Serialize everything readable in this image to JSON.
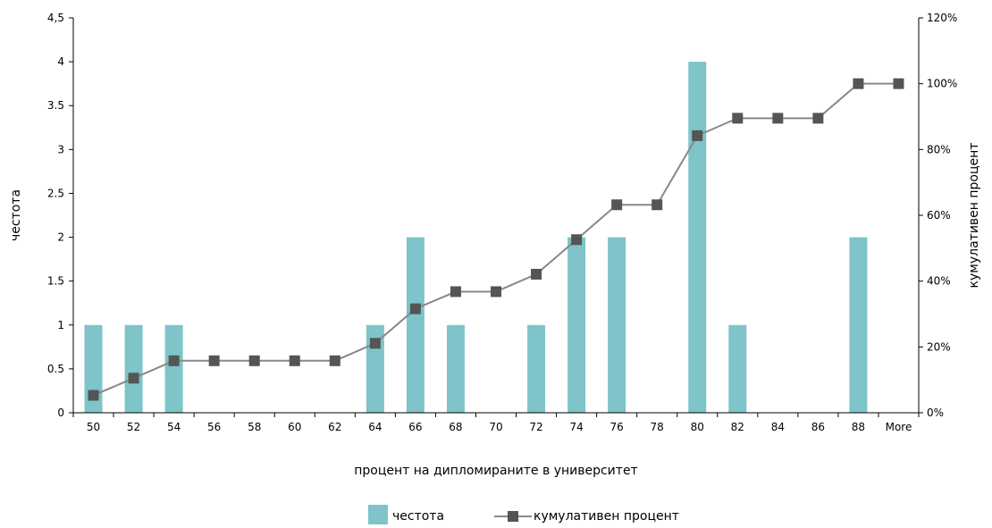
{
  "chart_data": {
    "type": "bar",
    "categories": [
      "50",
      "52",
      "54",
      "56",
      "58",
      "60",
      "62",
      "64",
      "66",
      "68",
      "70",
      "72",
      "74",
      "76",
      "78",
      "80",
      "82",
      "84",
      "86",
      "88",
      "More"
    ],
    "series": [
      {
        "name": "честота",
        "type": "bar",
        "axis": "left",
        "color": "#7ec4c9",
        "values": [
          1,
          1,
          1,
          0,
          0,
          0,
          0,
          1,
          2,
          1,
          0,
          1,
          2,
          2,
          0,
          4,
          1,
          0,
          0,
          2,
          0
        ]
      },
      {
        "name": "кумулативен процент",
        "type": "line",
        "axis": "right",
        "color": "#555555",
        "values": [
          5.3,
          10.5,
          15.8,
          15.8,
          15.8,
          15.8,
          15.8,
          21.1,
          31.6,
          36.8,
          36.8,
          42.1,
          52.6,
          63.2,
          63.2,
          84.2,
          89.5,
          89.5,
          89.5,
          100,
          100
        ]
      }
    ],
    "xlabel": "процент на дипломираните в университет",
    "ylabel": "честота",
    "y2label": "кумулативен процент",
    "ylim": [
      0,
      4.5
    ],
    "y_ticks": [
      "0",
      "0.5",
      "1",
      "1.5",
      "2",
      "2.5",
      "3",
      "3.5",
      "4",
      "4,5"
    ],
    "y2lim": [
      0,
      120
    ],
    "y2_ticks": [
      "0%",
      "20%",
      "40%",
      "60%",
      "80%",
      "100%",
      "120%"
    ],
    "grid": false,
    "legend_position": "bottom"
  }
}
